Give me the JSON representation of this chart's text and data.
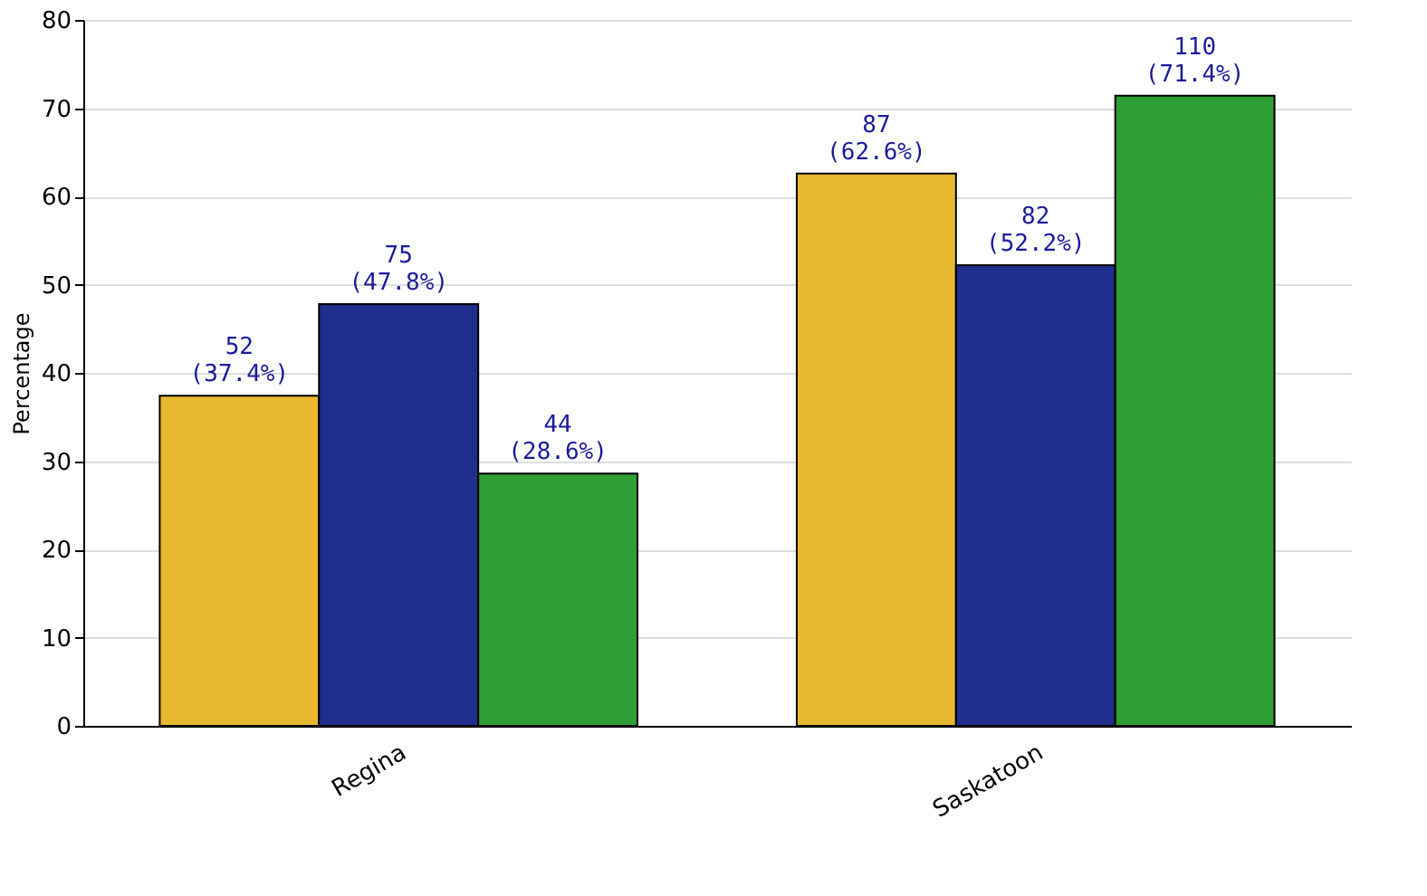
{
  "chart_data": {
    "type": "bar",
    "ylabel": "Percentage",
    "categories": [
      "Regina",
      "Saskatoon"
    ],
    "series": [
      {
        "color": "#e8b830",
        "values": [
          37.4,
          62.6
        ],
        "value_labels": [
          "52\n(37.4%)",
          "87\n(62.6%)"
        ]
      },
      {
        "color": "#1f2d8c",
        "values": [
          47.8,
          52.2
        ],
        "value_labels": [
          "75\n(47.8%)",
          "82\n(52.2%)"
        ]
      },
      {
        "color": "#2f9e34",
        "values": [
          28.6,
          71.4
        ],
        "value_labels": [
          "44\n(28.6%)",
          "110\n(71.4%)"
        ]
      }
    ],
    "ylim": [
      0,
      80
    ],
    "yticks": [
      0,
      10,
      20,
      30,
      40,
      50,
      60,
      70,
      80
    ],
    "grid": "y",
    "legend": false
  }
}
